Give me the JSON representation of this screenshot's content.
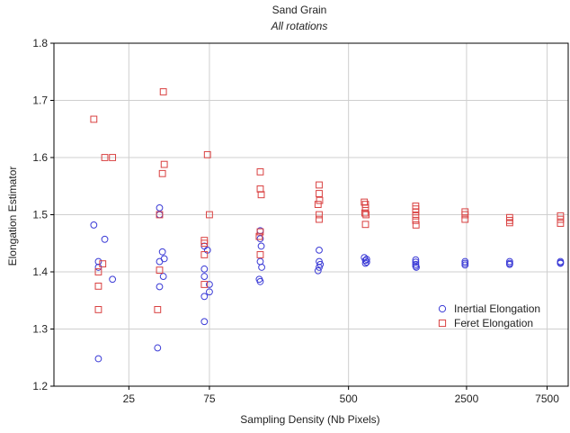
{
  "chart_data": {
    "type": "scatter",
    "title": "Sand Grain",
    "subtitle": "All rotations",
    "xlabel": "Sampling Density (Nb Pixels)",
    "ylabel": "Elongation Estimator",
    "x_scale": "log",
    "x_ticks": [
      25,
      75,
      500,
      2500,
      7500
    ],
    "x_tick_labels": [
      "25",
      "75",
      "500",
      "2500",
      "7500"
    ],
    "xlim": [
      9,
      10000
    ],
    "ylim": [
      1.2,
      1.8
    ],
    "y_ticks": [
      1.2,
      1.3,
      1.4,
      1.5,
      1.6,
      1.7,
      1.8
    ],
    "y_tick_labels": [
      "1.2",
      "1.3",
      "1.4",
      "1.5",
      "1.6",
      "1.7",
      "1.8"
    ],
    "grid": true,
    "legend_position": "bottom-right",
    "series": [
      {
        "name": "Inertial Elongation",
        "marker": "circle",
        "color": "#3b3bd6",
        "points": [
          [
            15.5,
            1.482
          ],
          [
            16.5,
            1.418
          ],
          [
            16.5,
            1.408
          ],
          [
            16.5,
            1.248
          ],
          [
            18,
            1.457
          ],
          [
            20,
            1.387
          ],
          [
            38,
            1.512
          ],
          [
            38,
            1.5
          ],
          [
            38,
            1.418
          ],
          [
            38,
            1.374
          ],
          [
            37,
            1.267
          ],
          [
            39.5,
            1.435
          ],
          [
            40.5,
            1.423
          ],
          [
            40,
            1.392
          ],
          [
            70,
            1.445
          ],
          [
            70,
            1.405
          ],
          [
            70,
            1.392
          ],
          [
            70,
            1.357
          ],
          [
            70,
            1.313
          ],
          [
            73,
            1.438
          ],
          [
            75,
            1.378
          ],
          [
            75,
            1.365
          ],
          [
            150,
            1.472
          ],
          [
            150,
            1.458
          ],
          [
            152,
            1.445
          ],
          [
            150,
            1.418
          ],
          [
            153,
            1.408
          ],
          [
            148,
            1.387
          ],
          [
            150,
            1.383
          ],
          [
            335,
            1.438
          ],
          [
            335,
            1.418
          ],
          [
            340,
            1.413
          ],
          [
            335,
            1.408
          ],
          [
            330,
            1.402
          ],
          [
            620,
            1.425
          ],
          [
            630,
            1.42
          ],
          [
            630,
            1.415
          ],
          [
            640,
            1.422
          ],
          [
            640,
            1.417
          ],
          [
            1250,
            1.421
          ],
          [
            1250,
            1.417
          ],
          [
            1250,
            1.413
          ],
          [
            1250,
            1.41
          ],
          [
            1260,
            1.408
          ],
          [
            2450,
            1.418
          ],
          [
            2450,
            1.415
          ],
          [
            2450,
            1.412
          ],
          [
            4500,
            1.418
          ],
          [
            4500,
            1.415
          ],
          [
            4500,
            1.413
          ],
          [
            9000,
            1.418
          ],
          [
            9000,
            1.416
          ],
          [
            9000,
            1.415
          ]
        ]
      },
      {
        "name": "Feret Elongation",
        "marker": "square",
        "color": "#d94040",
        "points": [
          [
            15.5,
            1.667
          ],
          [
            18,
            1.6
          ],
          [
            20,
            1.6
          ],
          [
            17.5,
            1.414
          ],
          [
            16.5,
            1.4
          ],
          [
            16.5,
            1.375
          ],
          [
            16.5,
            1.334
          ],
          [
            40,
            1.715
          ],
          [
            40.5,
            1.588
          ],
          [
            39.5,
            1.572
          ],
          [
            38,
            1.5
          ],
          [
            38,
            1.403
          ],
          [
            37,
            1.334
          ],
          [
            73,
            1.605
          ],
          [
            75,
            1.5
          ],
          [
            70,
            1.455
          ],
          [
            70,
            1.45
          ],
          [
            70,
            1.43
          ],
          [
            70,
            1.378
          ],
          [
            150,
            1.575
          ],
          [
            150,
            1.545
          ],
          [
            152,
            1.535
          ],
          [
            150,
            1.47
          ],
          [
            148,
            1.462
          ],
          [
            150,
            1.43
          ],
          [
            335,
            1.552
          ],
          [
            335,
            1.537
          ],
          [
            337,
            1.525
          ],
          [
            330,
            1.518
          ],
          [
            335,
            1.5
          ],
          [
            335,
            1.492
          ],
          [
            620,
            1.522
          ],
          [
            630,
            1.518
          ],
          [
            630,
            1.512
          ],
          [
            625,
            1.503
          ],
          [
            635,
            1.5
          ],
          [
            630,
            1.483
          ],
          [
            1250,
            1.515
          ],
          [
            1250,
            1.51
          ],
          [
            1250,
            1.505
          ],
          [
            1250,
            1.498
          ],
          [
            1250,
            1.49
          ],
          [
            1255,
            1.482
          ],
          [
            2450,
            1.505
          ],
          [
            2450,
            1.5
          ],
          [
            2450,
            1.492
          ],
          [
            4500,
            1.495
          ],
          [
            4500,
            1.49
          ],
          [
            4500,
            1.486
          ],
          [
            9000,
            1.498
          ],
          [
            9000,
            1.492
          ],
          [
            9000,
            1.485
          ]
        ]
      }
    ]
  }
}
